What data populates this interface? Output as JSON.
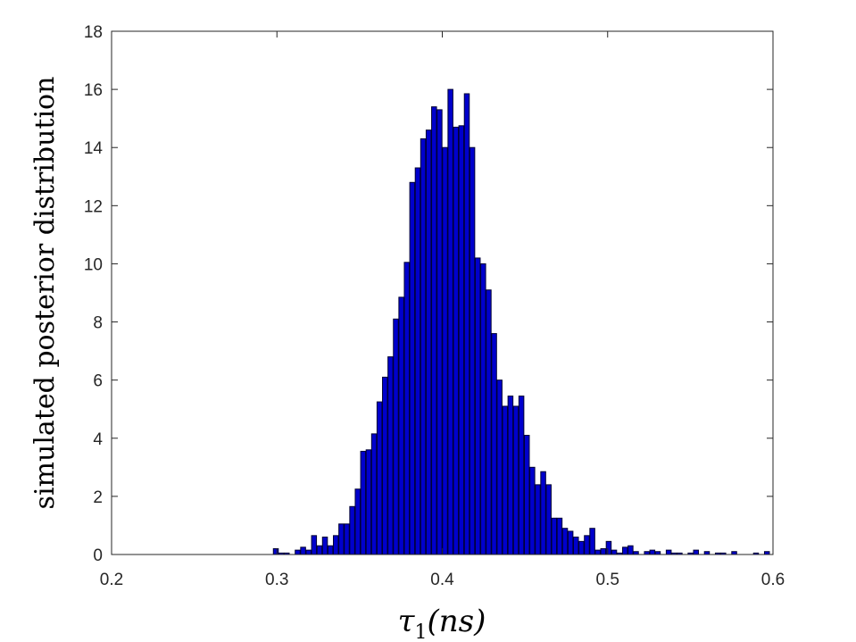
{
  "chart_data": {
    "type": "bar",
    "title": "",
    "xlabel_symbol": "τ",
    "xlabel_subscript": "1",
    "xlabel_rest": "(ns)",
    "ylabel": "simulated posterior distribution",
    "xlim": [
      0.2,
      0.6
    ],
    "ylim": [
      0,
      18
    ],
    "xticks": [
      0.2,
      0.3,
      0.4,
      0.5,
      0.6
    ],
    "xtick_labels": [
      "0.2",
      "0.3",
      "0.4",
      "0.5",
      "0.6"
    ],
    "yticks": [
      0,
      2,
      4,
      6,
      8,
      10,
      12,
      14,
      16,
      18
    ],
    "ytick_labels": [
      "0",
      "2",
      "4",
      "6",
      "8",
      "10",
      "12",
      "14",
      "16",
      "18"
    ],
    "grid": false,
    "legend": "none",
    "bar_color": "#0000cc",
    "bar_edge_color": "#000033",
    "bin_width": 0.0033,
    "x": [
      0.2995,
      0.3028,
      0.3061,
      0.3094,
      0.3127,
      0.316,
      0.3193,
      0.3226,
      0.3259,
      0.3292,
      0.3325,
      0.3358,
      0.3391,
      0.3424,
      0.3457,
      0.349,
      0.3523,
      0.3556,
      0.3589,
      0.3622,
      0.3655,
      0.3688,
      0.3721,
      0.3754,
      0.3787,
      0.382,
      0.3853,
      0.3886,
      0.3919,
      0.3952,
      0.3985,
      0.4018,
      0.4051,
      0.4084,
      0.4117,
      0.415,
      0.4183,
      0.4216,
      0.4249,
      0.4282,
      0.4315,
      0.4348,
      0.4381,
      0.4414,
      0.4447,
      0.448,
      0.4513,
      0.4546,
      0.4579,
      0.4612,
      0.4645,
      0.4678,
      0.4711,
      0.4744,
      0.4777,
      0.481,
      0.4843,
      0.4876,
      0.4909,
      0.4942,
      0.4975,
      0.5008,
      0.5041,
      0.5074,
      0.5107,
      0.514,
      0.5173,
      0.5206,
      0.5239,
      0.5272,
      0.5305,
      0.5338,
      0.5371,
      0.5404,
      0.5437,
      0.547,
      0.5503,
      0.5536,
      0.5569,
      0.5602,
      0.5635,
      0.5668,
      0.5701,
      0.5734,
      0.5767,
      0.58,
      0.5833,
      0.5866,
      0.5899,
      0.5932,
      0.5965
    ],
    "values": [
      0.2,
      0.05,
      0.05,
      0.0,
      0.15,
      0.25,
      0.15,
      0.65,
      0.3,
      0.6,
      0.3,
      0.65,
      1.05,
      1.05,
      1.65,
      2.25,
      3.55,
      3.6,
      4.15,
      5.25,
      6.1,
      6.8,
      8.1,
      8.85,
      10.05,
      12.8,
      13.3,
      14.3,
      14.6,
      15.4,
      15.3,
      14.0,
      16.0,
      14.7,
      14.75,
      15.85,
      14.0,
      10.2,
      10.0,
      9.1,
      7.6,
      6.0,
      5.1,
      5.45,
      5.1,
      5.45,
      4.1,
      3.0,
      2.4,
      2.85,
      2.4,
      1.25,
      1.25,
      0.9,
      0.8,
      0.6,
      0.45,
      0.65,
      0.9,
      0.15,
      0.2,
      0.45,
      0.15,
      0.05,
      0.25,
      0.3,
      0.1,
      0.0,
      0.1,
      0.15,
      0.1,
      0.0,
      0.15,
      0.05,
      0.05,
      0.0,
      0.05,
      0.15,
      0.0,
      0.1,
      0.0,
      0.05,
      0.05,
      0.0,
      0.1,
      0.0,
      0.0,
      0.0,
      0.05,
      0.0,
      0.1
    ]
  }
}
